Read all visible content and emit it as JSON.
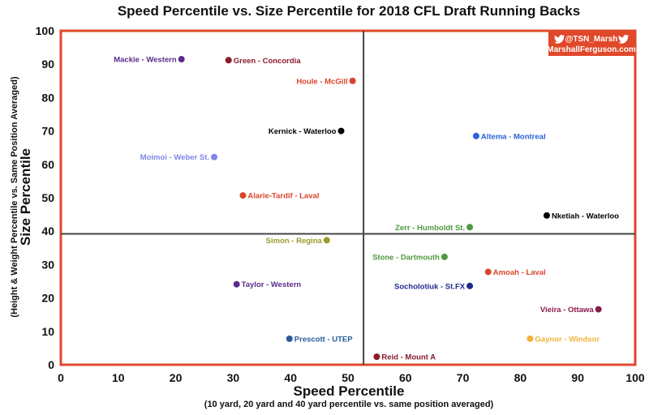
{
  "chart_data": {
    "type": "scatter",
    "title": "Speed Percentile vs. Size Percentile for 2018 CFL Draft Running Backs",
    "xlabel": "Speed Percentile",
    "xlabel_sub": "(10 yard, 20 yard and 40 yard percentile vs. same position averaged)",
    "ylabel": "Size Percentile",
    "ylabel_sub": "(Height & Weight Percentile vs. Same Position Averaged)",
    "xlim": [
      0,
      100
    ],
    "ylim": [
      0,
      100
    ],
    "xticks": [
      "0",
      "10",
      "20",
      "30",
      "40",
      "50",
      "60",
      "70",
      "80",
      "90",
      "100"
    ],
    "yticks": [
      "0",
      "10",
      "20",
      "30",
      "40",
      "50",
      "60",
      "70",
      "80",
      "90",
      "100"
    ],
    "grid": false,
    "quadrant_lines": {
      "x": 52.7,
      "y": 39.2
    },
    "frame_color": "#e0482a",
    "credit": {
      "handle": "@TSN_Marsh",
      "site": "MarshallFerguson.com",
      "background": "#e0482a",
      "icon": "twitter-bird-icon"
    },
    "points": [
      {
        "label": "Mackie - Western",
        "x": 21,
        "y": 91.5,
        "color": "#5b2a8c",
        "label_side": "left"
      },
      {
        "label": "Green - Concordia",
        "x": 29.2,
        "y": 91.2,
        "color": "#8b1a2a",
        "label_side": "right"
      },
      {
        "label": "Houle - McGill",
        "x": 50.8,
        "y": 85,
        "color": "#d9452b",
        "label_side": "left"
      },
      {
        "label": "Kernick - Waterloo",
        "x": 48.8,
        "y": 70,
        "color": "#000000",
        "label_side": "left"
      },
      {
        "label": "Altema - Montreal",
        "x": 72.3,
        "y": 68.5,
        "color": "#2a64d6",
        "label_side": "right"
      },
      {
        "label": "Moimoi - Weber St.",
        "x": 26.7,
        "y": 62.2,
        "color": "#7f86e8",
        "label_side": "left"
      },
      {
        "label": "Alarie-Tardif - Laval",
        "x": 31.7,
        "y": 50.7,
        "color": "#d9452b",
        "label_side": "right"
      },
      {
        "label": "Nketiah - Waterloo",
        "x": 84.6,
        "y": 44.7,
        "color": "#000000",
        "label_side": "right"
      },
      {
        "label": "Zerr - Humboldt St.",
        "x": 71.2,
        "y": 41.2,
        "color": "#4e9a3f",
        "label_side": "left"
      },
      {
        "label": "Simon - Regina",
        "x": 46.3,
        "y": 37.3,
        "color": "#9a9a2a",
        "label_side": "left"
      },
      {
        "label": "Stone - Dartmouth",
        "x": 66.8,
        "y": 32.3,
        "color": "#4e9a3f",
        "label_side": "left"
      },
      {
        "label": "Amoah - Laval",
        "x": 74.4,
        "y": 27.8,
        "color": "#d9452b",
        "label_side": "right"
      },
      {
        "label": "Taylor - Western",
        "x": 30.6,
        "y": 24.1,
        "color": "#5b2a8c",
        "label_side": "right"
      },
      {
        "label": "Socholotiuk - St.FX",
        "x": 71.2,
        "y": 23.6,
        "color": "#1f2a8c",
        "label_side": "left"
      },
      {
        "label": "Vieira - Ottawa",
        "x": 93.6,
        "y": 16.6,
        "color": "#8b1a4a",
        "label_side": "left"
      },
      {
        "label": "Prescott - UTEP",
        "x": 39.8,
        "y": 7.8,
        "color": "#2a5a9a",
        "label_side": "right"
      },
      {
        "label": "Gaynor - Windsor",
        "x": 81.7,
        "y": 7.8,
        "color": "#f0b23a",
        "label_side": "right"
      },
      {
        "label": "Reid - Mount A",
        "x": 55,
        "y": 2.4,
        "color": "#8b1a2a",
        "label_side": "right"
      }
    ]
  }
}
